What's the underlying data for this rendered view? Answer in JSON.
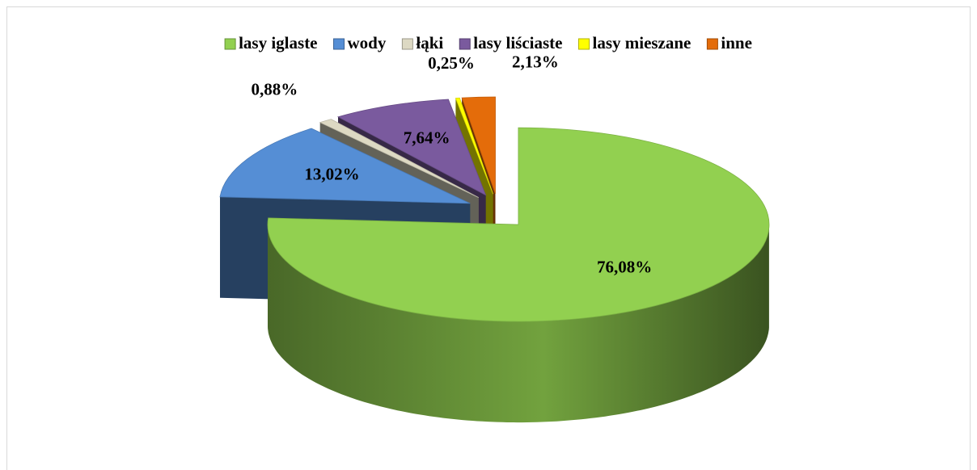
{
  "chart_data": {
    "type": "pie",
    "categories": [
      "lasy iglaste",
      "wody",
      "łąki",
      "lasy liściaste",
      "lasy mieszane",
      "inne"
    ],
    "values": [
      76.08,
      13.02,
      0.88,
      7.64,
      0.25,
      2.13
    ],
    "value_labels": [
      "76,08%",
      "13,02%",
      "0,88%",
      "7,64%",
      "0,25%",
      "2,13%"
    ],
    "colors": [
      "#92d050",
      "#558ed5",
      "#ddd9c3",
      "#7a5a9e",
      "#ffff00",
      "#e46c0a"
    ],
    "legend": "top"
  }
}
